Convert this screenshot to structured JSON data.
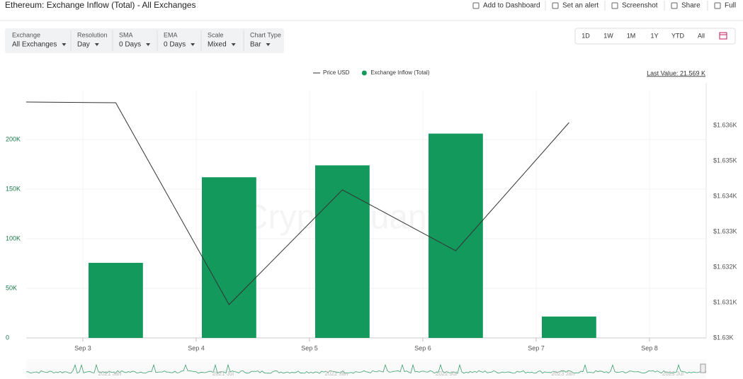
{
  "header": {
    "title": "Ethereum: Exchange Inflow (Total) - All Exchanges",
    "actions": [
      "Add to Dashboard",
      "Set an alert",
      "Screenshot",
      "Share",
      "Full"
    ]
  },
  "filters": [
    {
      "label": "Exchange",
      "value": "All Exchanges"
    },
    {
      "label": "Resolution",
      "value": "Day"
    },
    {
      "label": "SMA",
      "value": "0 Days"
    },
    {
      "label": "EMA",
      "value": "0 Days"
    },
    {
      "label": "Scale",
      "value": "Mixed"
    },
    {
      "label": "Chart Type",
      "value": "Bar"
    }
  ],
  "ranges": [
    "1D",
    "1W",
    "1M",
    "1Y",
    "YTD",
    "All"
  ],
  "last_value": "Last Value: 21.569 K",
  "watermark": "CryptoQuant",
  "navigator": {
    "labels": [
      "2021 Jan",
      "2021 Jul",
      "2022 Jan",
      "2022 Jul",
      "2023 Jan",
      "2023 Jul"
    ]
  },
  "chart_data": {
    "type": "bar",
    "xlim": [
      2.5,
      8.5
    ],
    "xticks": [
      {
        "value": 3,
        "label": "Sep 3"
      },
      {
        "value": 4,
        "label": "Sep 4"
      },
      {
        "value": 5,
        "label": "Sep 5"
      },
      {
        "value": 6,
        "label": "Sep 6"
      },
      {
        "value": 7,
        "label": "Sep 7"
      },
      {
        "value": 8,
        "label": "Sep 8"
      }
    ],
    "ylim": [
      0,
      250000
    ],
    "yticks": [
      0,
      {
        "value": 50000,
        "label": "50K"
      },
      {
        "value": 100000,
        "label": "100K"
      },
      {
        "value": 150000,
        "label": "150K"
      },
      {
        "value": 200000,
        "label": "200K"
      }
    ],
    "y2lim": [
      1630,
      1637
    ],
    "y2ticks": [
      {
        "value": 1630,
        "label": "$1.63K"
      },
      {
        "value": 1631,
        "label": "$1.631K"
      },
      {
        "value": 1632,
        "label": "$1.632K"
      },
      {
        "value": 1633,
        "label": "$1.633K"
      },
      {
        "value": 1634,
        "label": "$1.634K"
      },
      {
        "value": 1635,
        "label": "$1.635K"
      },
      {
        "value": 1636,
        "label": "$1.636K"
      }
    ],
    "grid": true,
    "legend": "top",
    "series": [
      {
        "name": "Price USD",
        "type": "line",
        "axis": "y2",
        "color": "#333333",
        "x": [
          2.5,
          3.29,
          4.29,
          5.29,
          6.29,
          7.29
        ],
        "values": [
          1636.66,
          1636.64,
          1630.94,
          1634.18,
          1632.46,
          1636.08
        ]
      },
      {
        "name": "Exchange Inflow (Total)",
        "type": "bar",
        "color": "#14995d",
        "x": [
          3.29,
          4.29,
          5.29,
          6.29,
          7.29
        ],
        "values": [
          75700,
          162000,
          174000,
          206000,
          21569
        ]
      }
    ]
  }
}
